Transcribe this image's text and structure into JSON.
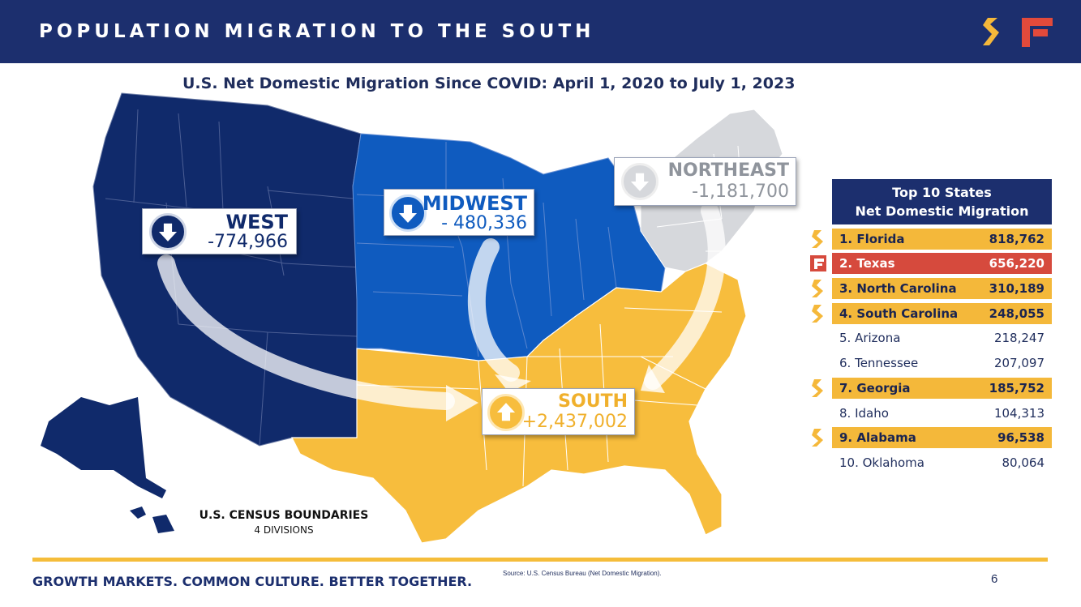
{
  "header": {
    "title": "POPULATION MIGRATION TO THE SOUTH"
  },
  "subtitle": "U.S. Net Domestic Migration Since COVID: April 1, 2020 to July 1, 2023",
  "regions": {
    "west": {
      "name": "WEST",
      "value": "-774,966",
      "color": "#102a6b"
    },
    "midwest": {
      "name": "MIDWEST",
      "value": "- 480,336",
      "color": "#0f5bbf"
    },
    "northeast": {
      "name": "NORTHEAST",
      "value": "-1,181,700",
      "color": "#d6d8dc"
    },
    "south": {
      "name": "SOUTH",
      "value": "+2,437,002",
      "color": "#f7bd3d"
    }
  },
  "census": {
    "title": "U.S. CENSUS BOUNDARIES",
    "subtitle": "4 DIVISIONS"
  },
  "table": {
    "title_line1": "Top 10 States",
    "title_line2": "Net Domestic Migration",
    "rows": [
      {
        "label": "1. Florida",
        "value": "818,762",
        "style": "hl",
        "icon": "s-logo-icon"
      },
      {
        "label": "2. Texas",
        "value": "656,220",
        "style": "tx",
        "icon": "f-logo-icon"
      },
      {
        "label": "3. North Carolina",
        "value": "310,189",
        "style": "hl",
        "icon": "s-logo-icon"
      },
      {
        "label": "4. South Carolina",
        "value": "248,055",
        "style": "hl",
        "icon": "s-logo-icon"
      },
      {
        "label": "5. Arizona",
        "value": "218,247",
        "style": "plain",
        "icon": ""
      },
      {
        "label": "6. Tennessee",
        "value": "207,097",
        "style": "plain",
        "icon": ""
      },
      {
        "label": "7. Georgia",
        "value": "185,752",
        "style": "hl",
        "icon": "s-logo-icon"
      },
      {
        "label": "8. Idaho",
        "value": "104,313",
        "style": "plain",
        "icon": ""
      },
      {
        "label": "9. Alabama",
        "value": "96,538",
        "style": "hl",
        "icon": "s-logo-icon"
      },
      {
        "label": "10. Oklahoma",
        "value": "80,064",
        "style": "plain",
        "icon": ""
      }
    ]
  },
  "footer": {
    "tagline": "GROWTH MARKETS. COMMON CULTURE. BETTER TOGETHER.",
    "source": "Source: U.S. Census Bureau (Net Domestic Migration).",
    "page": "6"
  }
}
